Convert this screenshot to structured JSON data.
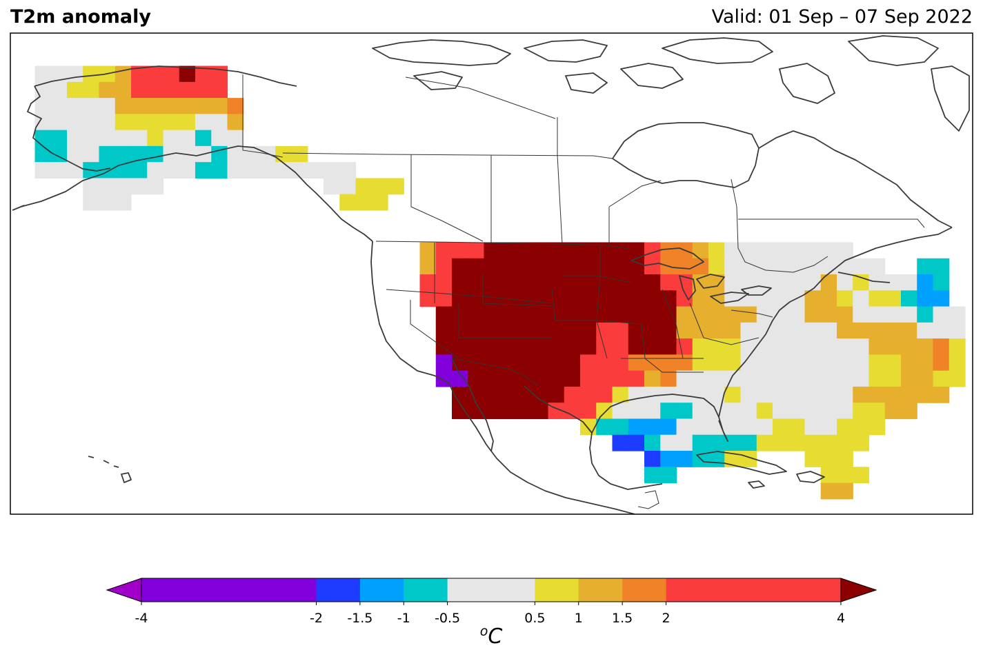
{
  "header": {
    "title": "T2m anomaly",
    "valid": "Valid: 01 Sep – 07 Sep 2022"
  },
  "colorbar": {
    "unit_super": "o",
    "unit_main": "C",
    "under_color": "#a000c8",
    "over_color": "#8b0000",
    "bins": [
      {
        "from": -4,
        "to": -2,
        "color": "#8200dc"
      },
      {
        "from": -2,
        "to": -1.5,
        "color": "#1e3cff"
      },
      {
        "from": -1.5,
        "to": -1,
        "color": "#00a0ff"
      },
      {
        "from": -1,
        "to": -0.5,
        "color": "#00c8c8"
      },
      {
        "from": -0.5,
        "to": 0.5,
        "color": "#e6e6e6"
      },
      {
        "from": 0.5,
        "to": 1,
        "color": "#e6dc32"
      },
      {
        "from": 1,
        "to": 1.5,
        "color": "#e6af2d"
      },
      {
        "from": 1.5,
        "to": 2,
        "color": "#f08228"
      },
      {
        "from": 2,
        "to": 4,
        "color": "#fa3c3c"
      }
    ],
    "ticks": [
      {
        "value": -4,
        "label": "-4"
      },
      {
        "value": -2,
        "label": "-2"
      },
      {
        "value": -1.5,
        "label": "-1.5"
      },
      {
        "value": -1,
        "label": "-1"
      },
      {
        "value": -0.5,
        "label": "-0.5"
      },
      {
        "value": 0.5,
        "label": "0.5"
      },
      {
        "value": 1,
        "label": "1"
      },
      {
        "value": 1.5,
        "label": "1.5"
      },
      {
        "value": 2,
        "label": "2"
      },
      {
        "value": 4,
        "label": "4"
      }
    ]
  },
  "map": {
    "coastline_color": "#3a3a3a",
    "border_color": "#333333",
    "categories": {
      "p": "#8200dc",
      "b": "#1e3cff",
      "c": "#00a0ff",
      "t": "#00c8c8",
      "g": "#e6e6e6",
      "y": "#e6dc32",
      "o": "#e6af2d",
      "O": "#f08228",
      "r": "#fa3c3c",
      "R": "#8b0000"
    },
    "grid": [
      "............................................................",
      "............................................................",
      "..gggyyorrrRrr..............................................",
      "..ggyyoorrrrrr..............................................",
      "..gggggoooooooO.............................................",
      "..gggggyyyyyggo.............................................",
      "..ttgggggyggtgg.............................................",
      "..ttggttttgggtgggyy.........................................",
      "..gggttttgggttgggggggg......................................",
      ".....ggggg..........ggyyy...................................",
      ".....ggg.............yyy....................................",
      "............................................................",
      "............................................................",
      "..........................orrrRRRRRRRRRRrOOoygggggggg.......",
      "..........................orRRRRRRRRRRRRrOOOygggggggggg..tt.",
      "..........................rrRRRRRRRRRRRRRrrooggggggogygggct.",
      "..........................rrRRRRRRRRRRRRRRroogggggooygyytcc.",
      "...........................RRRRRRRRRRRRRRRooooogggoooggggtgg",
      "...........................RRRRRRRRRRrrRRRooooggggggoooooggg",
      "...........................RRRRRRRRRRrrRRRryyyggggggggooooOy",
      "...........................pRRRRRRRRrrrOOOOyyyggggggggyyooOy",
      "...........................ppRRRRRRRrrrroOggggggggggggyyooyy",
      "............................RRRRRRRrrryggggggygggggggoooooo.",
      "............................RRRRRRrrrygggttggggygggggyyoo...",
      "....................................yttcccggggggyyggyyy.....",
      "......................................bbtggttttyyyyyyy......",
      "........................................bccttyy...yyy.......",
      "........................................tt.........yyy......",
      "...................................................oo.......",
      "............................................................",
      "............................................................"
    ]
  }
}
